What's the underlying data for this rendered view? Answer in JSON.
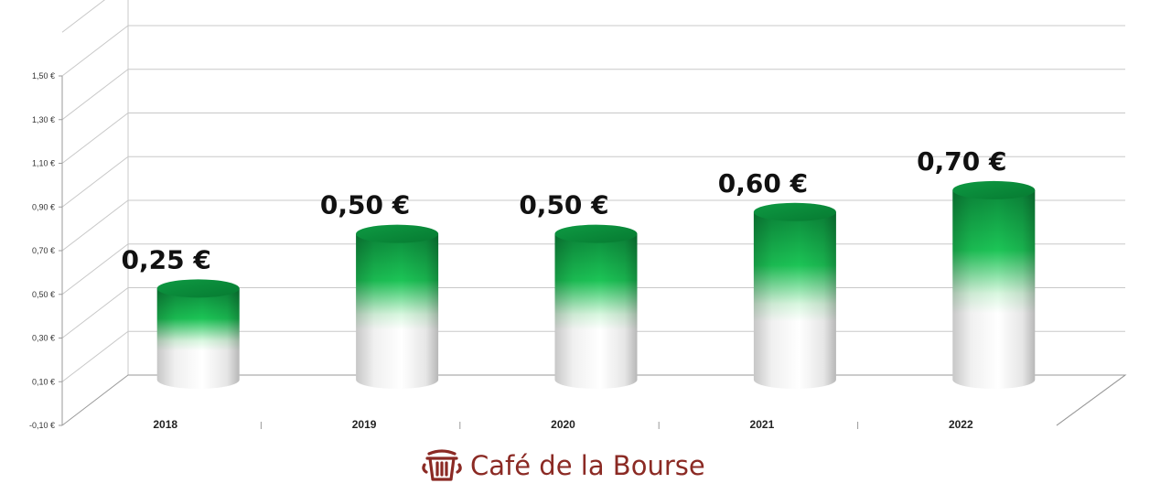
{
  "chart_data": {
    "type": "bar",
    "style": "3d-cylinder",
    "categories": [
      "2018",
      "2019",
      "2020",
      "2021",
      "2022"
    ],
    "values": [
      0.25,
      0.5,
      0.5,
      0.6,
      0.7
    ],
    "data_labels": [
      "0,25 €",
      "0,50 €",
      "0,50 €",
      "0,60 €",
      "0,70 €"
    ],
    "y_ticks": [
      -0.1,
      0.1,
      0.3,
      0.5,
      0.7,
      0.9,
      1.1,
      1.3,
      1.5
    ],
    "y_tick_labels": [
      "-0,10 €",
      "0,10 €",
      "0,30 €",
      "0,50 €",
      "0,70 €",
      "0,90 €",
      "1,10 €",
      "1,30 €",
      "1,50 €"
    ],
    "ylim": [
      -0.1,
      1.7
    ],
    "grid": true,
    "legend": "none",
    "colors": {
      "bar_top": "#0a8a3a",
      "bar_mid": "#1fbf55",
      "bar_base": "#ffffff",
      "grid": "#c8c8c8"
    }
  },
  "brand": {
    "logo_icon": "coffee-cup-icon",
    "logo_text": "Café de la Bourse",
    "logo_color": "#8b2a24"
  }
}
